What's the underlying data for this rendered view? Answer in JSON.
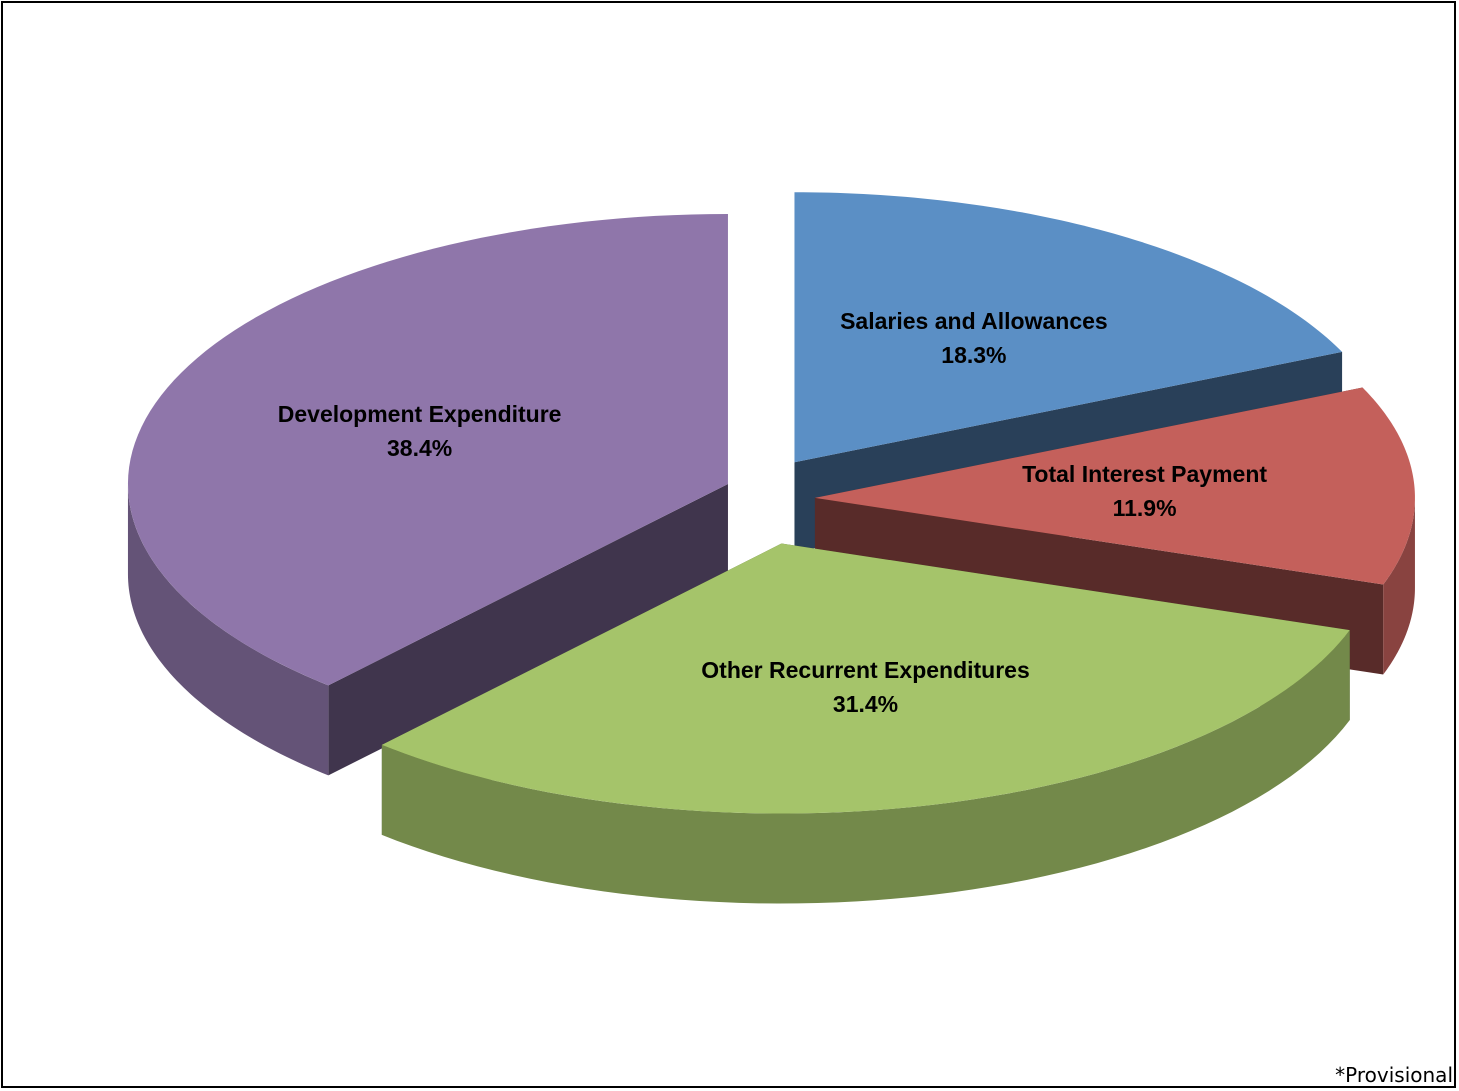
{
  "chart_data": {
    "type": "pie3d",
    "categories": [
      "Salaries and Allowances",
      "Total Interest Payment",
      "Other Recurrent Expenditures",
      "Development Expenditure"
    ],
    "values": [
      18.3,
      11.9,
      31.4,
      38.4
    ],
    "value_labels": [
      "18.3%",
      "11.9%",
      "31.4%",
      "38.4%"
    ],
    "colors": [
      "#5b8fc5",
      "#c4605b",
      "#a5c46a",
      "#8f76aa"
    ],
    "annotation": "*Provisional"
  }
}
